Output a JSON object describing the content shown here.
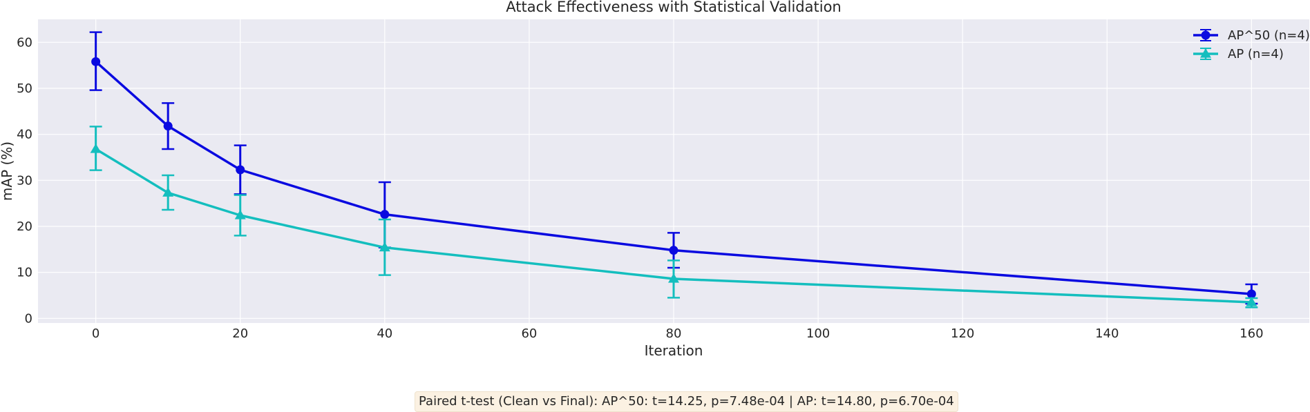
{
  "chart_data": {
    "type": "line",
    "title": "Attack Effectiveness with Statistical Validation",
    "xlabel": "Iteration",
    "ylabel": "mAP (%)",
    "xlim": [
      -8,
      168
    ],
    "ylim": [
      -1,
      65
    ],
    "xticks": [
      0,
      20,
      40,
      60,
      80,
      100,
      120,
      140,
      160
    ],
    "yticks": [
      0,
      10,
      20,
      30,
      40,
      50,
      60
    ],
    "grid": true,
    "legend_position": "top-right",
    "x": [
      0,
      10,
      20,
      40,
      80,
      160
    ],
    "series": [
      {
        "name": "AP^50 (n=4)",
        "color": "#0a0ae0",
        "marker": "circle",
        "values": [
          55.8,
          41.8,
          32.3,
          22.6,
          14.8,
          5.3
        ],
        "err_low": [
          49.6,
          36.8,
          27.0,
          15.4,
          11.0,
          3.2
        ],
        "err_high": [
          62.2,
          46.8,
          37.6,
          29.6,
          18.6,
          7.4
        ]
      },
      {
        "name": "AP (n=4)",
        "color": "#14bebe",
        "marker": "triangle",
        "values": [
          36.8,
          27.3,
          22.4,
          15.4,
          8.6,
          3.5
        ],
        "err_low": [
          32.2,
          23.6,
          18.0,
          9.4,
          4.5,
          2.4
        ],
        "err_high": [
          41.7,
          31.1,
          26.8,
          21.5,
          12.6,
          4.4
        ]
      }
    ]
  },
  "annotation": "Paired t-test (Clean vs Final): AP^50: t=14.25, p=7.48e-04 | AP: t=14.80, p=6.70e-04"
}
